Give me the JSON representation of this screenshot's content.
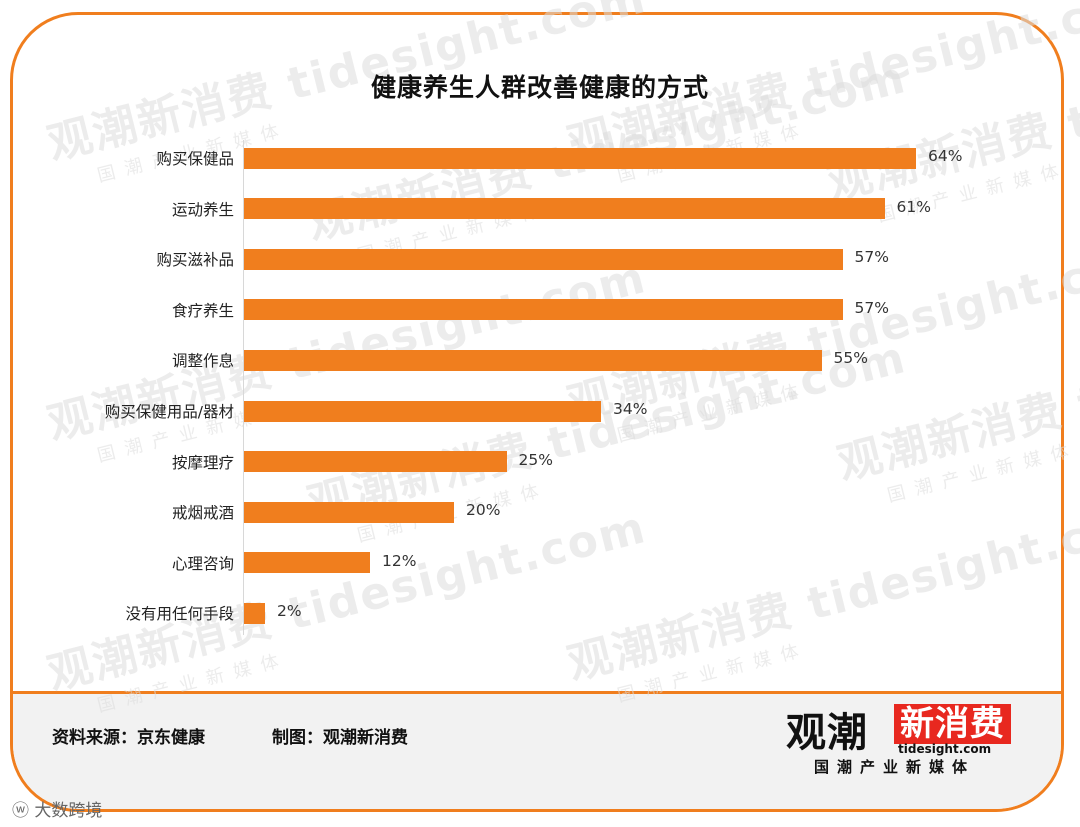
{
  "title": "健康养生人群改善健康的方式",
  "watermark": {
    "brand": "观潮新消费",
    "url": "tidesight.com",
    "tagline": "国潮产业新媒体"
  },
  "footer": {
    "source": "资料来源：京东健康",
    "maker": "制图：观潮新消费"
  },
  "logo": {
    "main": "观潮",
    "badge": "新消费",
    "url": "tidesight.com",
    "tagline": "国潮产业新媒体"
  },
  "corner_mark": "大数跨境",
  "colors": {
    "bar": "#F07E1E",
    "frame": "#F07E1E",
    "logo_badge": "#E8281F"
  },
  "chart_data": {
    "type": "bar",
    "orientation": "horizontal",
    "title": "健康养生人群改善健康的方式",
    "categories": [
      "购买保健品",
      "运动养生",
      "购买滋补品",
      "食疗养生",
      "调整作息",
      "购买保健用品/器材",
      "按摩理疗",
      "戒烟戒酒",
      "心理咨询",
      "没有用任何手段"
    ],
    "values": [
      64,
      61,
      57,
      57,
      55,
      34,
      25,
      20,
      12,
      2
    ],
    "value_labels": [
      "64%",
      "61%",
      "57%",
      "57%",
      "55%",
      "34%",
      "25%",
      "20%",
      "12%",
      "2%"
    ],
    "unit": "%",
    "xlim": [
      0,
      64
    ],
    "grid": false,
    "legend": "none"
  }
}
